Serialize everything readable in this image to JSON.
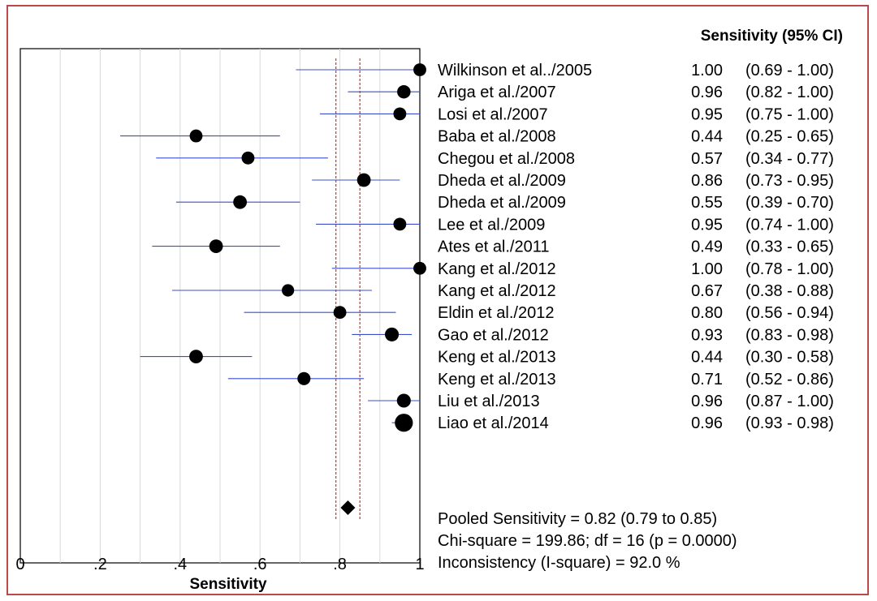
{
  "chart_data": {
    "type": "forest",
    "title": "Sensitivity (95% CI)",
    "xlabel": "Sensitivity",
    "xlim": [
      0,
      1
    ],
    "xticks": [
      "0",
      ".2",
      ".4",
      ".6",
      ".8",
      "1"
    ],
    "grid": true,
    "pooled": {
      "estimate": 0.82,
      "lower": 0.79,
      "upper": 0.85
    },
    "studies": [
      {
        "name": "Wilkinson et al../2005",
        "value": "1.00",
        "ci": "(0.69 - 1.00)",
        "est": 1.0,
        "lo": 0.69,
        "hi": 1.0,
        "weight": 0.6
      },
      {
        "name": "Ariga et al./2007",
        "value": "0.96",
        "ci": "(0.82 - 1.00)",
        "est": 0.96,
        "lo": 0.82,
        "hi": 1.0,
        "weight": 0.7
      },
      {
        "name": "Losi et al./2007",
        "value": "0.95",
        "ci": "(0.75 - 1.00)",
        "est": 0.95,
        "lo": 0.75,
        "hi": 1.0,
        "weight": 0.6
      },
      {
        "name": "Baba et al./2008",
        "value": "0.44",
        "ci": "(0.25 - 0.65)",
        "est": 0.44,
        "lo": 0.25,
        "hi": 0.65,
        "weight": 0.6
      },
      {
        "name": "Chegou et al./2008",
        "value": "0.57",
        "ci": "(0.34 - 0.77)",
        "est": 0.57,
        "lo": 0.34,
        "hi": 0.77,
        "weight": 0.6
      },
      {
        "name": "Dheda et al./2009",
        "value": "0.86",
        "ci": "(0.73 - 0.95)",
        "est": 0.86,
        "lo": 0.73,
        "hi": 0.95,
        "weight": 0.75
      },
      {
        "name": "Dheda et al./2009",
        "value": "0.55",
        "ci": "(0.39 - 0.70)",
        "est": 0.55,
        "lo": 0.39,
        "hi": 0.7,
        "weight": 0.75
      },
      {
        "name": "Lee et al./2009",
        "value": "0.95",
        "ci": "(0.74 - 1.00)",
        "est": 0.95,
        "lo": 0.74,
        "hi": 1.0,
        "weight": 0.6
      },
      {
        "name": "Ates et al./2011",
        "value": "0.49",
        "ci": "(0.33 - 0.65)",
        "est": 0.49,
        "lo": 0.33,
        "hi": 0.65,
        "weight": 0.75
      },
      {
        "name": "Kang et al./2012",
        "value": "1.00",
        "ci": "(0.78 - 1.00)",
        "est": 1.0,
        "lo": 0.78,
        "hi": 1.0,
        "weight": 0.6
      },
      {
        "name": "Kang et al./2012",
        "value": "0.67",
        "ci": "(0.38 - 0.88)",
        "est": 0.67,
        "lo": 0.38,
        "hi": 0.88,
        "weight": 0.5
      },
      {
        "name": "Eldin et al./2012",
        "value": "0.80",
        "ci": "(0.56 - 0.94)",
        "est": 0.8,
        "lo": 0.56,
        "hi": 0.94,
        "weight": 0.6
      },
      {
        "name": "Gao et al./2012",
        "value": "0.93",
        "ci": "(0.83 - 0.98)",
        "est": 0.93,
        "lo": 0.83,
        "hi": 0.98,
        "weight": 0.8
      },
      {
        "name": "Keng et al./2013",
        "value": "0.44",
        "ci": "(0.30 - 0.58)",
        "est": 0.44,
        "lo": 0.3,
        "hi": 0.58,
        "weight": 0.75
      },
      {
        "name": "Keng et al./2013",
        "value": "0.71",
        "ci": "(0.52 - 0.86)",
        "est": 0.71,
        "lo": 0.52,
        "hi": 0.86,
        "weight": 0.65
      },
      {
        "name": "Liu et al./2013",
        "value": "0.96",
        "ci": "(0.87 - 1.00)",
        "est": 0.96,
        "lo": 0.87,
        "hi": 1.0,
        "weight": 0.8
      },
      {
        "name": "Liao et al./2014",
        "value": "0.96",
        "ci": "(0.93 - 0.98)",
        "est": 0.96,
        "lo": 0.93,
        "hi": 0.98,
        "weight": 1.6
      }
    ],
    "summary": [
      "Pooled Sensitivity = 0.82 (0.79 to 0.85)",
      "Chi-square = 199.86; df =  16 (p = 0.0000)",
      "Inconsistency (I-square) = 92.0 %"
    ],
    "colors": {
      "ci_line": "#3a4fc8",
      "pooled_line": "#c0392b",
      "grid": "#d9d9d9",
      "frame_border": "#b84a4a",
      "marker": "#000000"
    }
  }
}
